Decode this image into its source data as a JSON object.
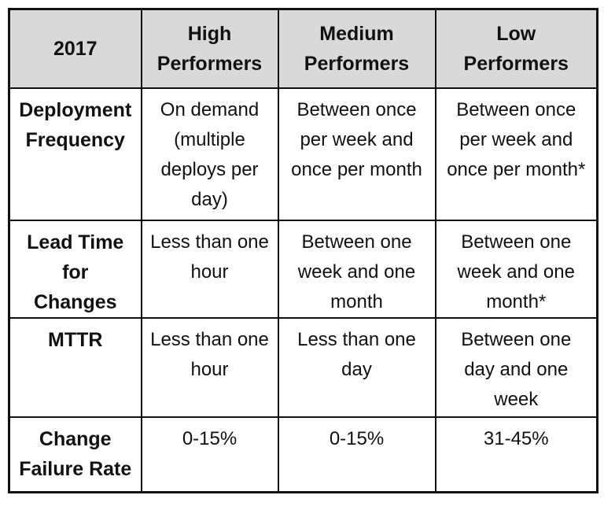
{
  "table": {
    "header": [
      "2017",
      "High Performers",
      "Medium Performers",
      "Low Performers"
    ],
    "rows": [
      [
        "Deployment Frequency",
        "On demand (multiple deploys per day)",
        "Between once per week and once per month",
        "Between once per week and once per month*"
      ],
      [
        "Lead Time for Changes",
        "Less than one hour",
        "Between one week and one month",
        "Between one week and one month*"
      ],
      [
        "MTTR",
        "Less than one hour",
        "Less than one day",
        "Between one day and one week"
      ],
      [
        "Change Failure Rate",
        "0-15%",
        "0-15%",
        "31-45%"
      ]
    ]
  }
}
